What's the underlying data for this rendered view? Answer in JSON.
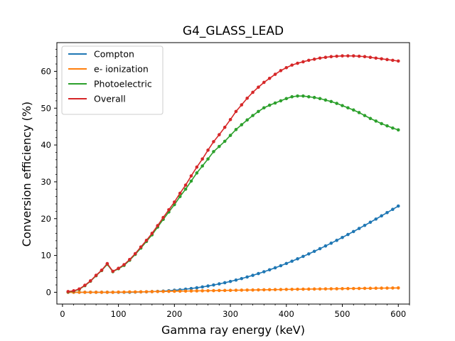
{
  "chart_data": {
    "type": "line",
    "title": "G4_GLASS_LEAD",
    "xlabel": "Gamma ray energy (keV)",
    "ylabel": "Conversion efficiency (%)",
    "xlim": [
      -10,
      620
    ],
    "ylim": [
      -3.2,
      67.8
    ],
    "xticks": [
      0,
      100,
      200,
      300,
      400,
      500,
      600
    ],
    "yticks": [
      0,
      10,
      20,
      30,
      40,
      50,
      60
    ],
    "grid": false,
    "legend_position": "upper-left",
    "markers": true,
    "x": [
      10,
      20,
      30,
      40,
      50,
      60,
      70,
      80,
      90,
      100,
      110,
      120,
      130,
      140,
      150,
      160,
      170,
      180,
      190,
      200,
      210,
      220,
      230,
      240,
      250,
      260,
      270,
      280,
      290,
      300,
      310,
      320,
      330,
      340,
      350,
      360,
      370,
      380,
      390,
      400,
      410,
      420,
      430,
      440,
      450,
      460,
      470,
      480,
      490,
      500,
      510,
      520,
      530,
      540,
      550,
      560,
      570,
      580,
      590,
      600
    ],
    "series": [
      {
        "name": "Compton",
        "color": "#1f77b4",
        "values": [
          0,
          0,
          0,
          0,
          0,
          0,
          0,
          0,
          0,
          0,
          0,
          0,
          0.05,
          0.1,
          0.12,
          0.18,
          0.25,
          0.32,
          0.42,
          0.55,
          0.68,
          0.84,
          1.02,
          1.22,
          1.45,
          1.7,
          1.98,
          2.28,
          2.6,
          2.95,
          3.32,
          3.72,
          4.15,
          4.6,
          5.08,
          5.58,
          6.1,
          6.65,
          7.22,
          7.82,
          8.44,
          9.08,
          9.74,
          10.42,
          11.12,
          11.84,
          12.58,
          13.33,
          14.1,
          14.89,
          15.69,
          16.5,
          17.33,
          18.17,
          19.02,
          19.88,
          20.75,
          21.63,
          22.52,
          23.42
        ]
      },
      {
        "name": "e- ionization",
        "color": "#ff7f0e",
        "values": [
          0,
          0,
          0,
          0,
          0,
          0,
          0,
          0,
          0,
          0.05,
          0.05,
          0.1,
          0.1,
          0.12,
          0.15,
          0.18,
          0.2,
          0.22,
          0.25,
          0.28,
          0.3,
          0.32,
          0.35,
          0.38,
          0.4,
          0.42,
          0.45,
          0.48,
          0.5,
          0.52,
          0.55,
          0.58,
          0.6,
          0.62,
          0.65,
          0.68,
          0.7,
          0.72,
          0.75,
          0.78,
          0.8,
          0.82,
          0.84,
          0.86,
          0.88,
          0.9,
          0.92,
          0.94,
          0.96,
          0.98,
          1.0,
          1.02,
          1.04,
          1.06,
          1.08,
          1.1,
          1.12,
          1.14,
          1.16,
          1.18
        ]
      },
      {
        "name": "Photoelectric",
        "color": "#2ca02c",
        "values": [
          0.1,
          0.3,
          0.8,
          1.8,
          3.0,
          4.5,
          5.9,
          7.6,
          5.6,
          6.4,
          7.3,
          8.7,
          10.3,
          12.0,
          13.8,
          15.6,
          17.7,
          19.8,
          21.8,
          23.8,
          26.0,
          28.0,
          30.2,
          32.4,
          34.3,
          36.2,
          38.2,
          39.6,
          41.0,
          42.6,
          44.2,
          45.5,
          46.8,
          48.0,
          49.1,
          50.1,
          50.8,
          51.4,
          52.0,
          52.6,
          53.1,
          53.3,
          53.3,
          53.1,
          52.9,
          52.6,
          52.2,
          51.8,
          51.3,
          50.7,
          50.1,
          49.5,
          48.8,
          48.0,
          47.2,
          46.5,
          45.8,
          45.2,
          44.6,
          44.1
        ]
      },
      {
        "name": "Overall",
        "color": "#d62728",
        "values": [
          0.2,
          0.4,
          0.9,
          1.9,
          3.1,
          4.6,
          6.0,
          7.8,
          5.7,
          6.5,
          7.5,
          8.9,
          10.5,
          12.3,
          14.1,
          16.0,
          18.1,
          20.3,
          22.4,
          24.5,
          26.9,
          29.1,
          31.6,
          34.0,
          36.2,
          38.6,
          40.9,
          42.8,
          44.8,
          46.9,
          49.1,
          50.9,
          52.7,
          54.3,
          55.7,
          57.0,
          58.1,
          59.2,
          60.2,
          61.0,
          61.7,
          62.2,
          62.6,
          63.0,
          63.3,
          63.6,
          63.8,
          64.0,
          64.1,
          64.2,
          64.2,
          64.2,
          64.1,
          64.0,
          63.8,
          63.6,
          63.4,
          63.2,
          63.0,
          62.8
        ]
      }
    ]
  }
}
